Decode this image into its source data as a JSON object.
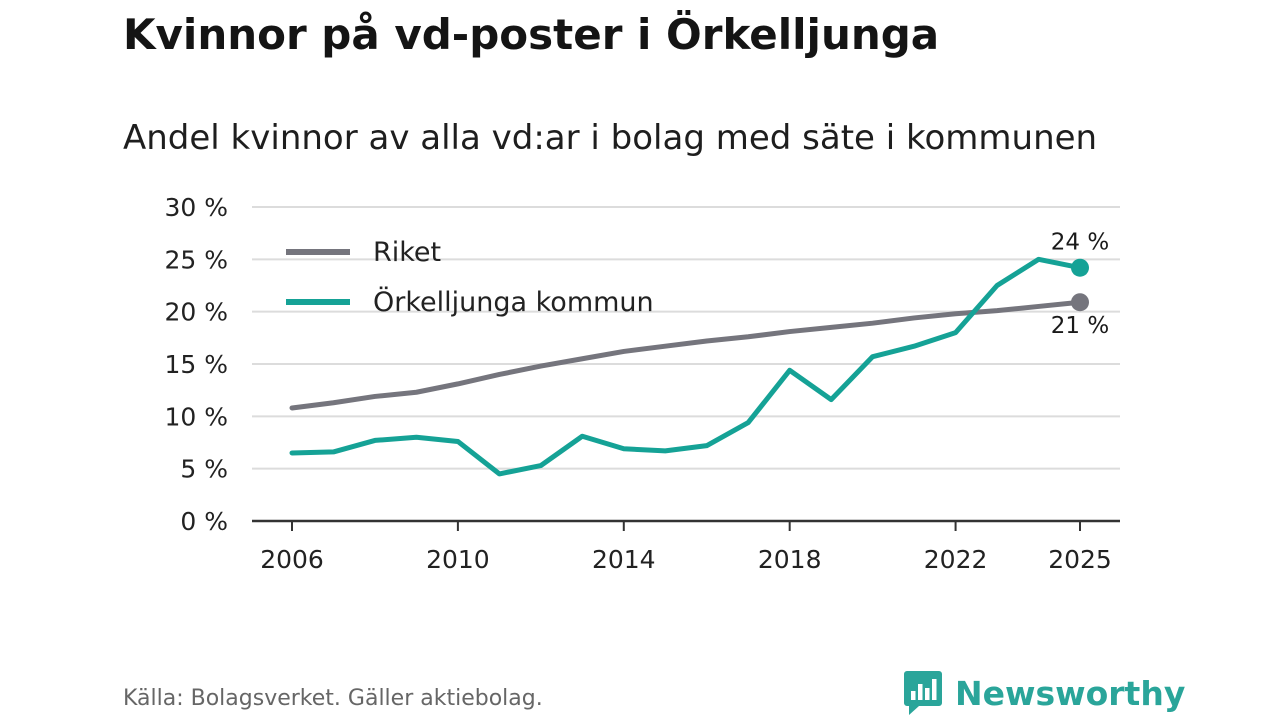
{
  "title": "Kvinnor på vd-poster i Örkelljunga",
  "subtitle": "Andel kvinnor av alla vd:ar i bolag med säte i kommunen",
  "source": "Källa: Bolagsverket. Gäller aktiebolag.",
  "brand": {
    "name": "Newsworthy",
    "icon": "newsworthy-logo-icon",
    "color": "#2aa59a"
  },
  "chart_data": {
    "type": "line",
    "title": "Kvinnor på vd-poster i Örkelljunga",
    "subtitle": "Andel kvinnor av alla vd:ar i bolag med säte i kommunen",
    "xlabel": "",
    "ylabel": "",
    "xlim": [
      2006,
      2025
    ],
    "ylim": [
      0,
      30
    ],
    "grid": true,
    "legend_position": "top-left",
    "x_ticks": [
      2006,
      2010,
      2014,
      2018,
      2022,
      2025
    ],
    "x_tick_labels": [
      "2006",
      "2010",
      "2014",
      "2018",
      "2022",
      "2025"
    ],
    "y_ticks": [
      0,
      5,
      10,
      15,
      20,
      25,
      30
    ],
    "y_tick_labels": [
      "0 %",
      "5 %",
      "10 %",
      "15 %",
      "20 %",
      "25 %",
      "30 %"
    ],
    "x": [
      2006,
      2007,
      2008,
      2009,
      2010,
      2011,
      2012,
      2013,
      2014,
      2015,
      2016,
      2017,
      2018,
      2019,
      2020,
      2021,
      2022,
      2023,
      2024,
      2025
    ],
    "series": [
      {
        "name": "Riket",
        "color": "#75757d",
        "values": [
          10.8,
          11.3,
          11.9,
          12.3,
          13.1,
          14.0,
          14.8,
          15.5,
          16.2,
          16.7,
          17.2,
          17.6,
          18.1,
          18.5,
          18.9,
          19.4,
          19.8,
          20.1,
          20.5,
          20.9
        ],
        "end_label": "21 %"
      },
      {
        "name": "Örkelljunga kommun",
        "color": "#15a296",
        "values": [
          6.5,
          6.6,
          7.7,
          8.0,
          7.6,
          4.5,
          5.3,
          8.1,
          6.9,
          6.7,
          7.2,
          9.4,
          14.4,
          11.6,
          15.7,
          16.7,
          18.0,
          22.5,
          25.0,
          24.2
        ],
        "end_label": "24 %"
      }
    ]
  }
}
